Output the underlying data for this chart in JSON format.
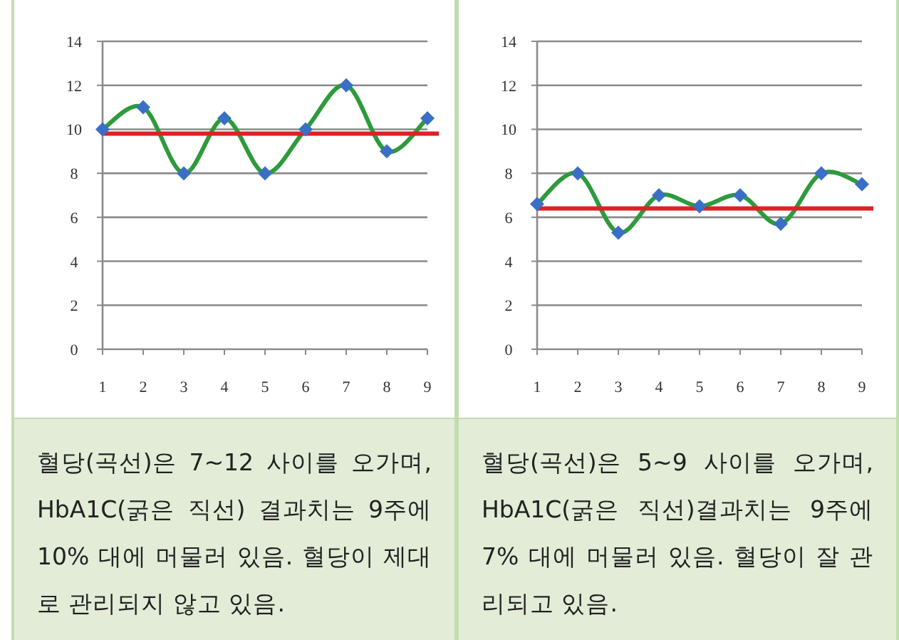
{
  "chart_data": [
    {
      "type": "line",
      "categories": [
        "1",
        "2",
        "3",
        "4",
        "5",
        "6",
        "7",
        "8",
        "9"
      ],
      "series": [
        {
          "color": "#2e9a3c",
          "values": [
            10,
            11,
            8,
            10.5,
            8,
            10,
            12,
            9,
            10.5
          ]
        }
      ],
      "marker": "diamond",
      "line_style": "solid",
      "grid": "y",
      "ylim": [
        0,
        14
      ],
      "yticks": [
        0,
        2,
        4,
        6,
        8,
        10,
        12,
        14
      ],
      "ref_lines": [
        {
          "axis": "y",
          "value": 9.8,
          "color": "#e02027"
        }
      ],
      "annotations": [
        "혈당(곡선)은 7~12 사이를 오가며, HbA1C(굵은 직선) 결과치는 9주에 10% 대에 머물러 있음. 혈당이 제대로 관리되지 않고 있음."
      ]
    },
    {
      "type": "line",
      "categories": [
        "1",
        "2",
        "3",
        "4",
        "5",
        "6",
        "7",
        "8",
        "9"
      ],
      "series": [
        {
          "color": "#2e9a3c",
          "values": [
            6.6,
            8,
            5.3,
            7,
            6.5,
            7,
            5.7,
            8,
            7.5
          ]
        }
      ],
      "marker": "diamond",
      "line_style": "solid",
      "grid": "y",
      "ylim": [
        0,
        14
      ],
      "yticks": [
        0,
        2,
        4,
        6,
        8,
        10,
        12,
        14
      ],
      "ref_lines": [
        {
          "axis": "y",
          "value": 6.4,
          "color": "#e02027"
        }
      ],
      "annotations": [
        "혈당(곡선)은 5~9 사이를 오가며, HbA1C(굵은 직선)결과치는 9주에 7% 대에 머물러 있음. 혈당이 잘 관리되고 있음."
      ]
    }
  ]
}
